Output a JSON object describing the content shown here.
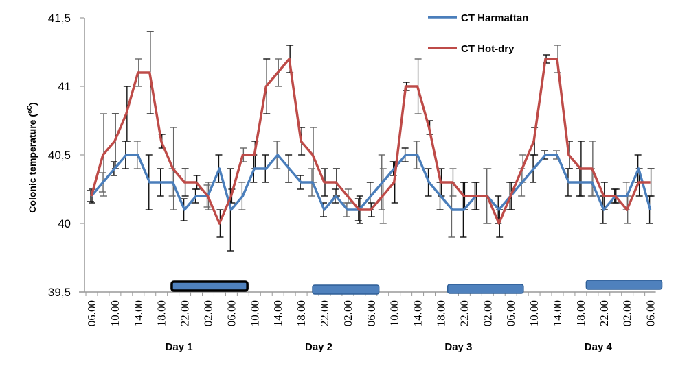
{
  "chart_data": {
    "type": "line",
    "title": "",
    "xlabel": "",
    "ylabel": "Colonic temperature (ºC)",
    "ylabel_main": "Colonic temperature (",
    "ylabel_sup": "oC",
    "ylabel_close": ")",
    "ylim": [
      39.5,
      41.5
    ],
    "yticks": [
      "39,5",
      "40",
      "40,5",
      "41",
      "41,5"
    ],
    "ytick_values": [
      39.5,
      40,
      40.5,
      41,
      41.5
    ],
    "grid": false,
    "legend_position": "top-right",
    "x_interval_hours": 2,
    "x_tick_labels": [
      "06.00",
      "10.00",
      "14.00",
      "18.00",
      "22.00",
      "02.00",
      "06.00",
      "10.00",
      "14.00",
      "18.00",
      "22.00",
      "02.00",
      "06.00",
      "10.00",
      "14.00",
      "18.00",
      "22.00",
      "02.00",
      "06.00",
      "10.00",
      "14.00",
      "18.00",
      "22.00",
      "02.00",
      "06.00"
    ],
    "day_labels": [
      {
        "label": "Day 1",
        "center_index": 8
      },
      {
        "label": "Day 2",
        "center_index": 20
      },
      {
        "label": "Day 3",
        "center_index": 32
      },
      {
        "label": "Day 4",
        "center_index": 44
      }
    ],
    "series": [
      {
        "name": "CT Harmattan",
        "color": "#4a7ebb",
        "values": [
          40.2,
          40.3,
          40.4,
          40.5,
          40.5,
          40.3,
          40.3,
          40.3,
          40.1,
          40.2,
          40.2,
          40.4,
          40.1,
          40.2,
          40.4,
          40.4,
          40.5,
          40.4,
          40.3,
          40.3,
          40.1,
          40.2,
          40.1,
          40.1,
          40.2,
          40.3,
          40.4,
          40.5,
          40.5,
          40.3,
          40.2,
          40.1,
          40.1,
          40.2,
          40.2,
          40.1,
          40.2,
          40.3,
          40.4,
          40.5,
          40.5,
          40.3,
          40.3,
          40.3,
          40.1,
          40.2,
          40.2,
          40.4,
          40.1
        ],
        "errors": [
          0.04,
          0.07,
          0.05,
          0.1,
          0.1,
          0.2,
          0.1,
          0.1,
          0.08,
          0.05,
          0.08,
          0.1,
          0.3,
          0.1,
          0.1,
          0.1,
          0.1,
          0.1,
          0.05,
          0.1,
          0.05,
          0.05,
          0.05,
          0.08,
          0.1,
          0.2,
          0.05,
          0.05,
          0.1,
          0.1,
          0.1,
          0.2,
          0.2,
          0.1,
          0.2,
          0.1,
          0.1,
          0.1,
          0.1,
          0.03,
          0.03,
          0.1,
          0.1,
          0.1,
          0.1,
          0.05,
          0.1,
          0.1,
          0.1
        ]
      },
      {
        "name": "CT Hot-dry",
        "color": "#be4b48",
        "values": [
          40.2,
          40.5,
          40.6,
          40.8,
          41.1,
          41.1,
          40.6,
          40.4,
          40.3,
          40.3,
          40.2,
          40.0,
          40.2,
          40.5,
          40.5,
          41.0,
          41.1,
          41.2,
          40.6,
          40.5,
          40.3,
          40.3,
          40.2,
          40.1,
          40.1,
          40.2,
          40.3,
          41.0,
          41.0,
          40.7,
          40.3,
          40.3,
          40.2,
          40.2,
          40.2,
          40.0,
          40.2,
          40.4,
          40.6,
          41.2,
          41.2,
          40.5,
          40.4,
          40.4,
          40.2,
          40.2,
          40.1,
          40.3,
          40.3
        ],
        "errors": [
          0.05,
          0.3,
          0.2,
          0.2,
          0.1,
          0.3,
          0.05,
          0.3,
          0.1,
          0.05,
          0.1,
          0.1,
          0.05,
          0.05,
          0.1,
          0.2,
          0.1,
          0.1,
          0.1,
          0.2,
          0.1,
          0.1,
          0.05,
          0.1,
          0.05,
          0.2,
          0.15,
          0.03,
          0.2,
          0.05,
          0.1,
          0.1,
          0.1,
          0.1,
          0.2,
          0.1,
          0.1,
          0.1,
          0.1,
          0.03,
          0.1,
          0.1,
          0.2,
          0.2,
          0.1,
          0.05,
          0.1,
          0.1,
          0.1
        ]
      }
    ],
    "night_bars": [
      {
        "start_index": 6.9,
        "end_index": 13.4,
        "bold_border": true
      },
      {
        "start_index": 19.0,
        "end_index": 24.7,
        "bold_border": false
      },
      {
        "start_index": 30.6,
        "end_index": 37.1,
        "bold_border": false
      },
      {
        "start_index": 42.5,
        "end_index": 49.0,
        "bold_border": false
      }
    ],
    "night_bar_color": "#4f81bd",
    "night_bar_border": "#2e5e96"
  }
}
